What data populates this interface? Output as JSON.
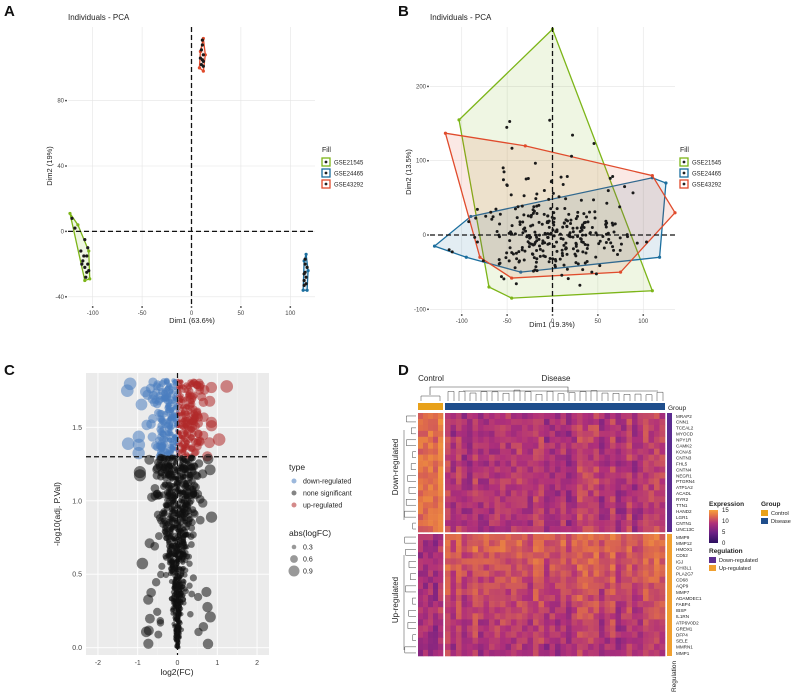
{
  "chart_data": [
    {
      "panel": "A",
      "type": "scatter",
      "title": "Individuals - PCA",
      "xlabel": "Dim1 (63.6%)",
      "ylabel": "Dim2 (19%)",
      "xlim": [
        -125,
        125
      ],
      "ylim": [
        -45,
        125
      ],
      "xticks": [
        -100,
        -50,
        0,
        50,
        100
      ],
      "yticks": [
        -40,
        0,
        40,
        80
      ],
      "grid": true,
      "legend_title": "Fill",
      "legend_position": "right",
      "series": [
        {
          "name": "GSE21545",
          "color": "#7cb518",
          "hull": [
            [
              -123,
              11
            ],
            [
              -108,
              -30
            ],
            [
              -103,
              -29
            ],
            [
              -104,
              -12
            ],
            [
              -115,
              4
            ]
          ],
          "points": [
            [
              -110,
              -18
            ],
            [
              -108,
              -22
            ],
            [
              -106,
              -25
            ],
            [
              -105,
              -20
            ],
            [
              -109,
              -15
            ],
            [
              -112,
              -12
            ],
            [
              -107,
              -28
            ],
            [
              -104,
              -24
            ],
            [
              -111,
              -20
            ],
            [
              -106,
              -15
            ],
            [
              -118,
              2
            ],
            [
              -121,
              8
            ],
            [
              -105,
              -10
            ],
            [
              -108,
              -5
            ]
          ]
        },
        {
          "name": "GSE24465",
          "color": "#1b6e9e",
          "hull": [
            [
              113,
              -36
            ],
            [
              117,
              -36
            ],
            [
              118,
              -24
            ],
            [
              116,
              -14
            ],
            [
              114,
              -18
            ]
          ],
          "points": [
            [
              114,
              -30
            ],
            [
              115,
              -25
            ],
            [
              116,
              -28
            ],
            [
              115,
              -20
            ],
            [
              114,
              -33
            ],
            [
              116,
              -32
            ],
            [
              117,
              -22
            ],
            [
              115,
              -17
            ],
            [
              114,
              -26
            ]
          ]
        },
        {
          "name": "GSE43292",
          "color": "#e04b2c",
          "hull": [
            [
              8,
              100
            ],
            [
              12,
              98
            ],
            [
              14,
              108
            ],
            [
              12,
              118
            ],
            [
              9,
              110
            ]
          ],
          "points": [
            [
              10,
              102
            ],
            [
              11,
              105
            ],
            [
              12,
              108
            ],
            [
              10,
              111
            ],
            [
              11,
              114
            ],
            [
              12,
              101
            ],
            [
              9,
              106
            ],
            [
              11,
              117
            ],
            [
              12,
              104
            ]
          ]
        }
      ]
    },
    {
      "panel": "B",
      "type": "scatter",
      "title": "Individuals - PCA",
      "xlabel": "Dim1 (19.3%)",
      "ylabel": "Dim2 (13.5%)",
      "xlim": [
        -135,
        135
      ],
      "ylim": [
        -105,
        280
      ],
      "xticks": [
        -100,
        -50,
        0,
        50,
        100
      ],
      "yticks": [
        -100,
        0,
        100,
        200
      ],
      "grid": true,
      "legend_title": "Fill",
      "legend_position": "right",
      "series": [
        {
          "name": "GSE21545",
          "color": "#7cb518",
          "hull": [
            [
              0,
              277
            ],
            [
              -103,
              155
            ],
            [
              -70,
              -70
            ],
            [
              -45,
              -85
            ],
            [
              110,
              -75
            ]
          ]
        },
        {
          "name": "GSE24465",
          "color": "#1b6e9e",
          "hull": [
            [
              -130,
              -15
            ],
            [
              -90,
              25
            ],
            [
              110,
              77
            ],
            [
              125,
              70
            ],
            [
              118,
              -30
            ],
            [
              -35,
              -50
            ],
            [
              -95,
              -30
            ]
          ]
        },
        {
          "name": "GSE43292",
          "color": "#e04b2c",
          "hull": [
            [
              -118,
              137
            ],
            [
              -80,
              -30
            ],
            [
              -45,
              -58
            ],
            [
              75,
              -50
            ],
            [
              135,
              30
            ],
            [
              110,
              80
            ],
            [
              -30,
              120
            ]
          ]
        }
      ],
      "points_note": "approximately 300 individuals"
    },
    {
      "panel": "C",
      "type": "scatter",
      "subtype": "volcano",
      "xlabel": "log2(FC)",
      "ylabel": "-log10(adj. P.Val)",
      "xlim": [
        -2.3,
        2.3
      ],
      "ylim": [
        -0.05,
        1.87
      ],
      "xticks": [
        -2,
        -1,
        0,
        1,
        2
      ],
      "yticks": [
        0.0,
        0.5,
        1.0,
        1.5
      ],
      "threshold_y": 1.3,
      "threshold_x": 0,
      "legend_type_title": "type",
      "legend_size_title": "abs(logFC)",
      "size_values": [
        "0.3",
        "0.6",
        "0.9"
      ],
      "series": [
        {
          "name": "down-regulated",
          "color": "#4a7dc0"
        },
        {
          "name": "none significant",
          "color": "#1f1f1f"
        },
        {
          "name": "up-regulated",
          "color": "#b02a2a"
        }
      ]
    },
    {
      "panel": "D",
      "type": "heatmap",
      "column_groups": [
        {
          "name": "Control",
          "color": "#e8a11a",
          "count": 5
        },
        {
          "name": "Disease",
          "color": "#1f4e8c",
          "count": 40
        }
      ],
      "group_annotation_label": "Group",
      "row_annotation_label": "Regulation",
      "row_groups": [
        {
          "name": "Down-regulated",
          "color": "#5b2c90",
          "genes": [
            "MRAP2",
            "CNN1",
            "TCEAL2",
            "MYOCD",
            "NPY1R",
            "CAMK2",
            "KCNA5",
            "CNTN3",
            "FHL5",
            "CNTN4",
            "NEGR1",
            "PTGRN4",
            "ATP1A2",
            "ACADL",
            "RYR2",
            "TTN1",
            "HAND2",
            "LGR1",
            "CNTN1",
            "UNC13C"
          ]
        },
        {
          "name": "Up-regulated",
          "color": "#f0a030",
          "genes": [
            "MMP9",
            "MMP12",
            "HMOX1",
            "CD52",
            "IGJ",
            "CHI3L1",
            "PLA2G7",
            "CD68",
            "AQP9",
            "MMP7",
            "ADAMDEC1",
            "FABP4",
            "IBSP",
            "IL1RN",
            "ATP6V0D2",
            "GREM1",
            "DFP4",
            "SELE",
            "MMRN1",
            "MMP1"
          ]
        }
      ],
      "expression_legend_title": "Expression",
      "expression_ticks": [
        0,
        5,
        10,
        15
      ],
      "expression_colormap": [
        "#2a0f5e",
        "#6a1f84",
        "#b0307a",
        "#e06d4a",
        "#f7a23a"
      ],
      "group_legend_title": "Group",
      "regulation_legend_title": "Regulation"
    }
  ],
  "panel_labels": [
    "A",
    "B",
    "C",
    "D"
  ],
  "colors": {
    "plot_bg": "#ebebeb",
    "grid": "#ffffff",
    "point": "#1a1a1a"
  }
}
